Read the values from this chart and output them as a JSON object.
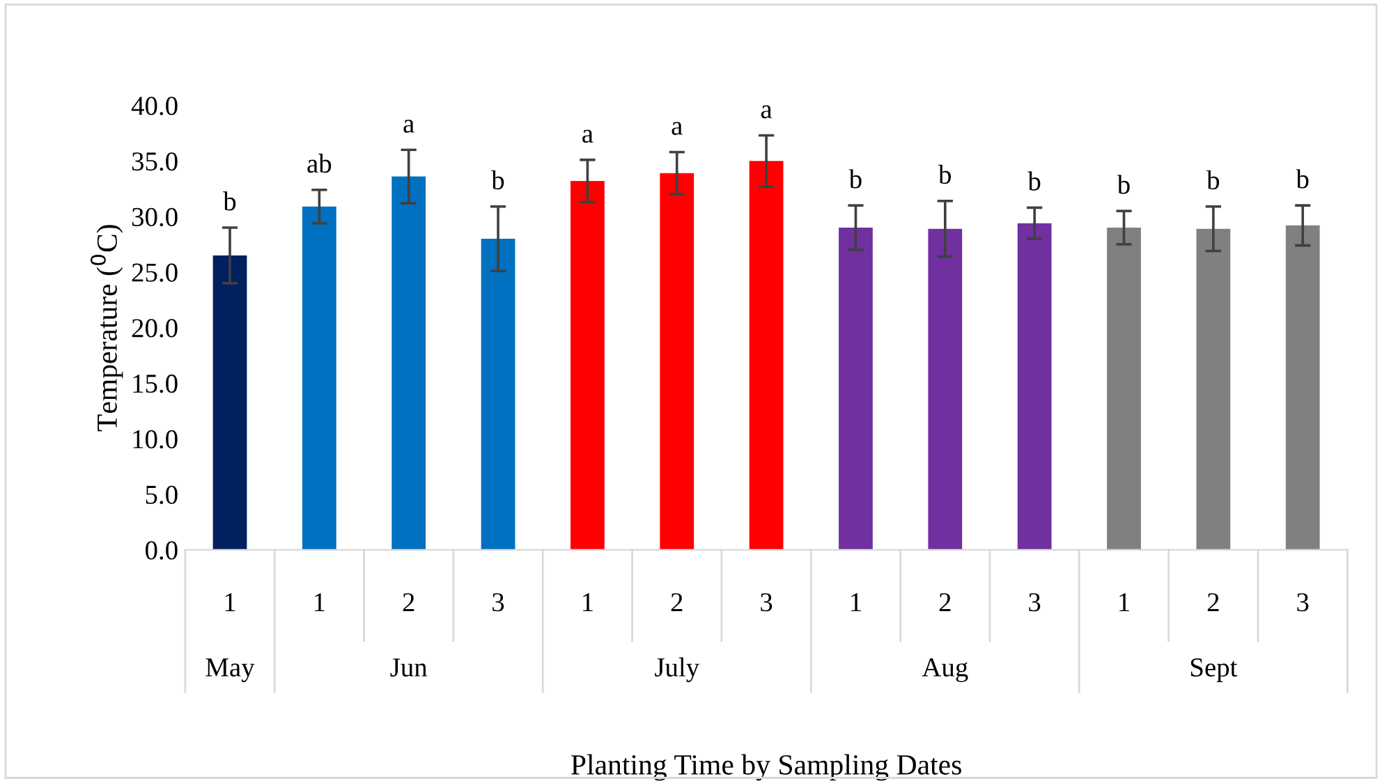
{
  "chart_data": {
    "type": "bar",
    "ylabel": "Temperature ($^{0}$C)",
    "xlabel": "Planting Time by Sampling Dates",
    "categories": [
      "1",
      "1",
      "2",
      "3",
      "1",
      "2",
      "3",
      "1",
      "2",
      "3",
      "1",
      "2",
      "3"
    ],
    "values": [
      26.5,
      30.9,
      33.6,
      28.0,
      33.2,
      33.9,
      35.0,
      29.0,
      28.9,
      29.4,
      29.0,
      28.9,
      29.2
    ],
    "errors": [
      2.5,
      1.5,
      2.4,
      2.9,
      1.9,
      1.9,
      2.3,
      2.0,
      2.5,
      1.4,
      1.5,
      2.0,
      1.8
    ],
    "colors": [
      "#002060",
      "#0070c0",
      "#0070c0",
      "#0070c0",
      "#ff0000",
      "#ff0000",
      "#ff0000",
      "#7030a0",
      "#7030a0",
      "#7030a0",
      "#808080",
      "#808080",
      "#808080"
    ],
    "value_labels": [
      "b",
      "ab",
      "a",
      "b",
      "a",
      "a",
      "a",
      "b",
      "b",
      "b",
      "b",
      "b",
      "b"
    ],
    "annotations": [
      "May",
      "Jun",
      "July",
      "Aug",
      "Sept"
    ],
    "ylim": [
      0,
      40
    ],
    "yticks": [
      {
        "value": 0,
        "label": "0.0"
      },
      {
        "value": 5,
        "label": "5.0"
      },
      {
        "value": 10,
        "label": "10.0"
      },
      {
        "value": 15,
        "label": "15.0"
      },
      {
        "value": 20,
        "label": "20.0"
      },
      {
        "value": 25,
        "label": "25.0"
      },
      {
        "value": 30,
        "label": "30.0"
      },
      {
        "value": 35,
        "label": "35.0"
      },
      {
        "value": 40,
        "label": "40.0"
      }
    ],
    "grid": false
  }
}
